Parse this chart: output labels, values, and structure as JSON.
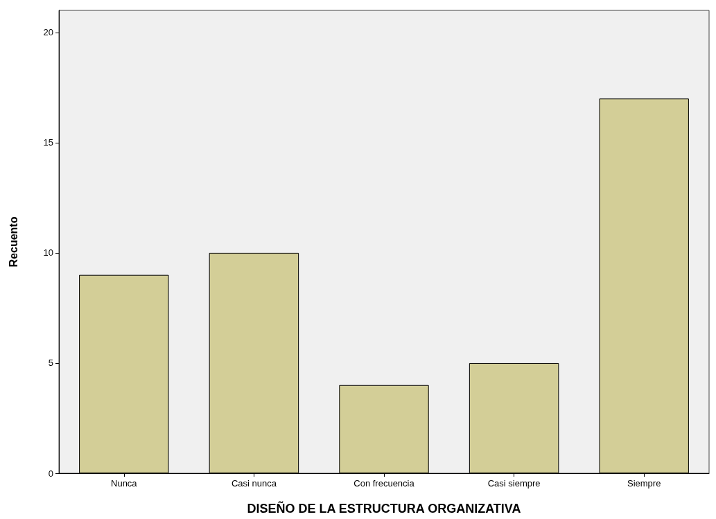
{
  "chart_data": {
    "type": "bar",
    "xlabel": "DISEÑO DE LA ESTRUCTURA ORGANIZATIVA",
    "ylabel": "Recuento",
    "categories": [
      "Nunca",
      "Casi nunca",
      "Con frecuencia",
      "Casi siempre",
      "Siempre"
    ],
    "values": [
      9,
      10,
      4,
      5,
      17
    ],
    "color": "#d3ce97",
    "ylim": [
      0,
      21
    ],
    "yticks": [
      0,
      5,
      10,
      15,
      20
    ],
    "grid": false
  }
}
